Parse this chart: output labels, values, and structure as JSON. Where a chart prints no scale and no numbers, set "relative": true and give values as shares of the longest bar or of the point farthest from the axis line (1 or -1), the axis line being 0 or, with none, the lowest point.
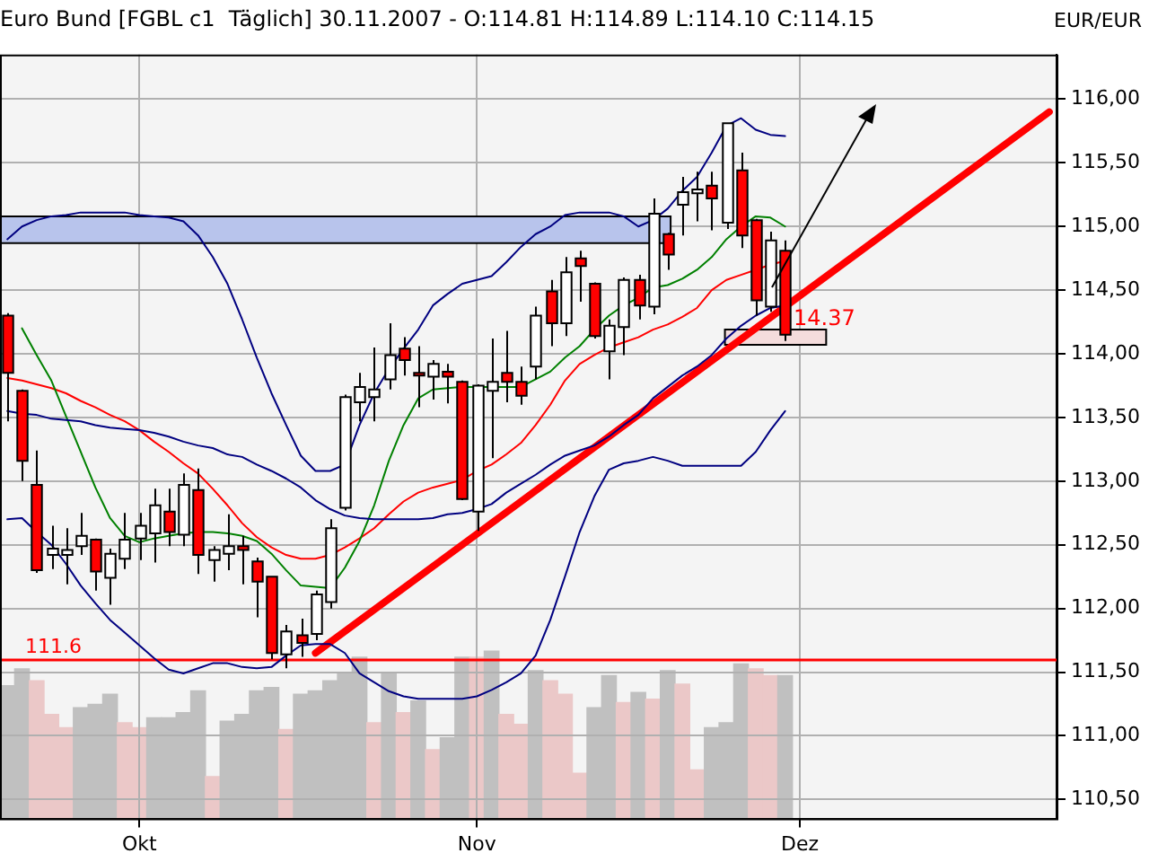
{
  "chart_data": [
    {
      "type": "candlestick",
      "title": "Euro Bund [FGBL c1  Täglich] 30.11.2007 - O:114.81 H:114.89 L:114.10 C:114.15",
      "ylabel": "EUR/EUR",
      "categories": [
        null,
        null,
        null,
        null,
        null,
        null,
        null,
        null,
        null,
        "Okt",
        null,
        null,
        null,
        null,
        null,
        null,
        null,
        null,
        null,
        null,
        null,
        null,
        null,
        null,
        null,
        null,
        null,
        null,
        null,
        null,
        null,
        null,
        "Nov",
        null,
        null,
        null,
        null,
        null,
        null,
        null,
        null,
        null,
        null,
        null,
        null,
        null,
        null,
        null,
        null,
        null,
        null,
        null,
        null,
        null,
        "Dez",
        null,
        null,
        null,
        null,
        null,
        null,
        null,
        null,
        null,
        null,
        null,
        null,
        null,
        null,
        null,
        null,
        null
      ],
      "ohlc": [
        [
          114.3,
          114.32,
          113.47,
          113.85
        ],
        [
          113.71,
          113.72,
          113.0,
          113.16
        ],
        [
          112.97,
          113.24,
          112.28,
          112.3
        ],
        [
          112.42,
          112.65,
          112.31,
          112.47
        ],
        [
          112.42,
          112.63,
          112.19,
          112.46
        ],
        [
          112.49,
          112.75,
          112.42,
          112.57
        ],
        [
          112.54,
          112.55,
          112.14,
          112.29
        ],
        [
          112.24,
          112.47,
          112.03,
          112.43
        ],
        [
          112.39,
          112.75,
          112.31,
          112.54
        ],
        [
          112.55,
          112.75,
          112.38,
          112.65
        ],
        [
          112.59,
          112.94,
          112.36,
          112.81
        ],
        [
          112.76,
          112.94,
          112.49,
          112.6
        ],
        [
          112.58,
          113.06,
          112.49,
          112.97
        ],
        [
          112.93,
          113.1,
          112.27,
          112.42
        ],
        [
          112.38,
          112.49,
          112.21,
          112.46
        ],
        [
          112.43,
          112.74,
          112.3,
          112.49
        ],
        [
          112.49,
          112.57,
          112.19,
          112.46
        ],
        [
          112.37,
          112.4,
          111.93,
          112.21
        ],
        [
          112.25,
          112.25,
          111.6,
          111.65
        ],
        [
          111.64,
          111.87,
          111.53,
          111.82
        ],
        [
          111.79,
          111.92,
          111.62,
          111.73
        ],
        [
          111.8,
          112.14,
          111.75,
          112.11
        ],
        [
          112.05,
          112.7,
          112.0,
          112.63
        ],
        [
          112.79,
          113.68,
          112.77,
          113.66
        ],
        [
          113.62,
          113.85,
          113.47,
          113.74
        ],
        [
          113.66,
          114.05,
          113.47,
          113.72
        ],
        [
          113.8,
          114.24,
          113.72,
          113.99
        ],
        [
          114.04,
          114.13,
          113.83,
          113.95
        ],
        [
          113.85,
          114.06,
          113.58,
          113.83
        ],
        [
          113.82,
          113.95,
          113.64,
          113.92
        ],
        [
          113.86,
          113.92,
          113.61,
          113.82
        ],
        [
          113.78,
          113.79,
          112.85,
          112.86
        ],
        [
          112.76,
          113.76,
          112.61,
          113.75
        ],
        [
          113.71,
          114.12,
          113.18,
          113.78
        ],
        [
          113.85,
          114.18,
          113.62,
          113.78
        ],
        [
          113.78,
          113.9,
          113.6,
          113.67
        ],
        [
          113.9,
          114.37,
          113.8,
          114.3
        ],
        [
          114.49,
          114.58,
          114.06,
          114.24
        ],
        [
          114.24,
          114.76,
          114.14,
          114.64
        ],
        [
          114.75,
          114.81,
          114.41,
          114.69
        ],
        [
          114.55,
          114.56,
          114.12,
          114.14
        ],
        [
          114.02,
          114.27,
          113.8,
          114.22
        ],
        [
          114.21,
          114.6,
          113.99,
          114.58
        ],
        [
          114.58,
          114.62,
          114.27,
          114.38
        ],
        [
          114.37,
          115.22,
          114.31,
          115.1
        ],
        [
          114.94,
          114.95,
          114.66,
          114.78
        ],
        [
          115.17,
          115.39,
          114.93,
          115.27
        ],
        [
          115.26,
          115.43,
          115.04,
          115.29
        ],
        [
          115.32,
          115.43,
          114.97,
          115.22
        ],
        [
          115.03,
          115.81,
          114.98,
          115.81
        ],
        [
          115.44,
          115.58,
          114.83,
          114.93
        ],
        [
          115.05,
          115.06,
          114.3,
          114.42
        ],
        [
          114.37,
          114.96,
          114.33,
          114.89
        ],
        [
          114.81,
          114.89,
          114.1,
          114.15
        ],
        null,
        null,
        null,
        null,
        null,
        null,
        null,
        null,
        null,
        null,
        null,
        null,
        null,
        null,
        null,
        null,
        null,
        null
      ],
      "colors": [
        "#ff0000",
        "#ff0000",
        "#ff0000",
        "#ffffff",
        "#ffffff",
        "#ffffff",
        "#ff0000",
        "#ffffff",
        "#ffffff",
        "#ffffff",
        "#ffffff",
        "#ff0000",
        "#ffffff",
        "#ff0000",
        "#ffffff",
        "#ffffff",
        "#ff0000",
        "#ff0000",
        "#ff0000",
        "#ffffff",
        "#ff0000",
        "#ffffff",
        "#ffffff",
        "#ffffff",
        "#ffffff",
        "#ffffff",
        "#ffffff",
        "#ff0000",
        "#ff0000",
        "#ffffff",
        "#ff0000",
        "#ff0000",
        "#ffffff",
        "#ffffff",
        "#ff0000",
        "#ff0000",
        "#ffffff",
        "#ff0000",
        "#ffffff",
        "#ff0000",
        "#ff0000",
        "#ffffff",
        "#ffffff",
        "#ff0000",
        "#ffffff",
        "#ff0000",
        "#ffffff",
        "#ffffff",
        "#ff0000",
        "#ffffff",
        "#ff0000",
        "#ff0000",
        "#ffffff",
        "#ff0000",
        null,
        null,
        null,
        null,
        null,
        null,
        null,
        null,
        null,
        null,
        null,
        null,
        null,
        null,
        null,
        null,
        null,
        null
      ],
      "series": [
        {
          "type": "line",
          "color": "#000080",
          "values": [
            114.9,
            115.0,
            115.05,
            115.08,
            115.09,
            115.11,
            115.11,
            115.11,
            115.11,
            115.09,
            115.08,
            115.07,
            115.04,
            114.93,
            114.76,
            114.55,
            114.27,
            113.97,
            113.69,
            113.44,
            113.2,
            113.08,
            113.08,
            113.13,
            113.44,
            113.69,
            113.88,
            114.04,
            114.19,
            114.38,
            114.47,
            114.55,
            114.58,
            114.61,
            114.72,
            114.84,
            114.94,
            115.0,
            115.09,
            115.11,
            115.11,
            115.11,
            115.08,
            115.0,
            115.05,
            115.14,
            115.28,
            115.39,
            115.58,
            115.79,
            115.85,
            115.76,
            115.72,
            115.71,
            null,
            null,
            null,
            null,
            null,
            null,
            null,
            null,
            null,
            null,
            null,
            null,
            null,
            null,
            null,
            null,
            null,
            null
          ]
        },
        {
          "type": "line",
          "color": "#000080",
          "values": [
            113.55,
            113.53,
            113.52,
            113.49,
            113.48,
            113.47,
            113.44,
            113.42,
            113.41,
            113.4,
            113.38,
            113.35,
            113.31,
            113.28,
            113.26,
            113.21,
            113.19,
            113.13,
            113.08,
            113.02,
            112.95,
            112.85,
            112.78,
            112.73,
            112.71,
            112.7,
            112.7,
            112.7,
            112.7,
            112.71,
            112.74,
            112.75,
            112.78,
            112.82,
            112.91,
            112.98,
            113.05,
            113.13,
            113.2,
            113.24,
            113.28,
            113.35,
            113.44,
            113.52,
            113.65,
            113.74,
            113.83,
            113.9,
            113.99,
            114.12,
            114.22,
            114.3,
            114.36,
            114.38,
            null,
            null,
            null,
            null,
            null,
            null,
            null,
            null,
            null,
            null,
            null,
            null,
            null,
            null,
            null,
            null,
            null,
            null
          ]
        },
        {
          "type": "line",
          "color": "#000080",
          "values": [
            112.7,
            112.71,
            112.6,
            112.5,
            112.35,
            112.18,
            112.04,
            111.91,
            111.81,
            111.71,
            111.61,
            111.52,
            111.49,
            111.53,
            111.57,
            111.57,
            111.54,
            111.53,
            111.54,
            111.63,
            111.71,
            111.72,
            111.72,
            111.65,
            111.49,
            111.42,
            111.35,
            111.31,
            111.29,
            111.29,
            111.29,
            111.29,
            111.31,
            111.36,
            111.42,
            111.49,
            111.63,
            111.91,
            112.25,
            112.6,
            112.88,
            113.09,
            113.14,
            113.16,
            113.19,
            113.16,
            113.12,
            113.12,
            113.12,
            113.12,
            113.12,
            113.23,
            113.4,
            113.55,
            null,
            null,
            null,
            null,
            null,
            null,
            null,
            null,
            null,
            null,
            null,
            null,
            null,
            null,
            null,
            null,
            null,
            null
          ]
        },
        {
          "type": "line",
          "color": "#008000",
          "values": [
            null,
            114.2,
            113.99,
            113.79,
            113.51,
            113.23,
            112.95,
            112.71,
            112.57,
            112.52,
            112.55,
            112.57,
            112.59,
            112.6,
            112.6,
            112.59,
            112.57,
            112.53,
            112.43,
            112.3,
            112.18,
            112.17,
            112.16,
            112.32,
            112.53,
            112.81,
            113.16,
            113.44,
            113.65,
            113.72,
            113.73,
            113.74,
            113.74,
            113.74,
            113.74,
            113.74,
            113.8,
            113.86,
            113.97,
            114.06,
            114.19,
            114.3,
            114.38,
            114.44,
            114.52,
            114.54,
            114.59,
            114.66,
            114.76,
            114.9,
            115.0,
            115.08,
            115.07,
            115.0,
            null,
            null,
            null,
            null,
            null,
            null,
            null,
            null,
            null,
            null,
            null,
            null,
            null,
            null,
            null,
            null,
            null,
            null
          ]
        },
        {
          "type": "line",
          "color": "#ff0000",
          "values": [
            113.81,
            113.79,
            113.76,
            113.73,
            113.69,
            113.63,
            113.58,
            113.52,
            113.47,
            113.4,
            113.31,
            113.23,
            113.14,
            113.06,
            112.94,
            112.81,
            112.67,
            112.56,
            112.48,
            112.42,
            112.39,
            112.39,
            112.42,
            112.48,
            112.55,
            112.63,
            112.74,
            112.84,
            112.91,
            112.95,
            112.98,
            113.01,
            113.08,
            113.13,
            113.21,
            113.3,
            113.44,
            113.6,
            113.79,
            113.92,
            113.99,
            114.05,
            114.09,
            114.13,
            114.19,
            114.23,
            114.29,
            114.36,
            114.5,
            114.58,
            114.62,
            114.66,
            114.7,
            114.73,
            null,
            null,
            null,
            null,
            null,
            null,
            null,
            null,
            null,
            null,
            null,
            null,
            null,
            null,
            null,
            null,
            null,
            null
          ]
        },
        {
          "type": "line",
          "color": "#ff0000",
          "values": [
            null,
            null,
            null,
            null,
            null,
            null,
            null,
            null,
            null,
            null,
            null,
            null,
            null,
            null,
            null,
            null,
            null,
            null,
            null,
            null,
            null,
            111.65,
            null,
            null,
            null,
            null,
            null,
            null,
            null,
            null,
            null,
            null,
            null,
            null,
            null,
            null,
            null,
            null,
            null,
            null,
            null,
            null,
            null,
            null,
            null,
            null,
            null,
            null,
            null,
            null,
            null,
            null,
            null,
            null,
            null,
            null,
            null,
            null,
            null,
            null,
            null,
            null,
            null,
            null,
            null,
            null,
            null,
            null,
            null,
            null,
            null,
            115.9
          ]
        }
      ],
      "ylim": [
        110.35,
        116.35
      ],
      "yticks": [
        {
          "value": 110.5,
          "label": "110,50"
        },
        {
          "value": 111,
          "label": "111,00"
        },
        {
          "value": 111.5,
          "label": "111,50"
        },
        {
          "value": 112,
          "label": "112,00"
        },
        {
          "value": 112.5,
          "label": "112,50"
        },
        {
          "value": 113,
          "label": "113,00"
        },
        {
          "value": 113.5,
          "label": "113,50"
        },
        {
          "value": 114,
          "label": "114,00"
        },
        {
          "value": 114.5,
          "label": "114,50"
        },
        {
          "value": 115,
          "label": "115,00"
        },
        {
          "value": 115.5,
          "label": "115,50"
        },
        {
          "value": 116,
          "label": "116,00"
        }
      ],
      "grid": true,
      "marker": "none",
      "ref_lines": [
        {
          "axis": "y",
          "value": 111.6,
          "label": "111.6",
          "color": "#ff0000"
        }
      ],
      "bands": [
        {
          "axis": "y",
          "from": 114.87,
          "to": 115.08,
          "color": "#b8c4ec"
        },
        {
          "axis": "y",
          "from": 114.07,
          "to": 114.19,
          "color": "#f4dcdc"
        }
      ],
      "annotations": [
        "14.37"
      ]
    },
    {
      "type": "bar",
      "relative": true,
      "tick_labels": false,
      "categories": [
        null,
        null,
        null,
        null,
        null,
        null,
        null,
        null,
        null,
        null,
        null,
        null,
        null,
        null,
        null,
        null,
        null,
        null,
        null,
        null,
        null,
        null,
        null,
        null,
        null,
        null,
        null,
        null,
        null,
        null,
        null,
        null,
        null,
        null,
        null,
        null,
        null,
        null,
        null,
        null,
        null,
        null,
        null,
        null,
        null,
        null,
        null,
        null,
        null,
        null,
        null,
        null,
        null,
        null,
        null,
        null,
        null,
        null,
        null,
        null,
        null,
        null,
        null,
        null,
        null,
        null,
        null,
        null,
        null,
        null,
        null,
        null
      ],
      "colors": [
        "#c0c0c0",
        "#c0c0c0",
        "#ebc8c8",
        "#ebc8c8",
        "#ebc8c8",
        "#c0c0c0",
        "#c0c0c0",
        "#c0c0c0",
        "#ebc8c8",
        "#ebc8c8",
        "#c0c0c0",
        "#c0c0c0",
        "#c0c0c0",
        "#c0c0c0",
        "#ebc8c8",
        "#c0c0c0",
        "#c0c0c0",
        "#c0c0c0",
        "#c0c0c0",
        "#ebc8c8",
        "#c0c0c0",
        "#c0c0c0",
        "#c0c0c0",
        "#c0c0c0",
        "#c0c0c0",
        "#ebc8c8",
        "#c0c0c0",
        "#ebc8c8",
        "#c0c0c0",
        "#ebc8c8",
        "#c0c0c0",
        "#c0c0c0",
        "#ebc8c8",
        "#c0c0c0",
        "#ebc8c8",
        "#ebc8c8",
        "#c0c0c0",
        "#ebc8c8",
        "#ebc8c8",
        "#ebc8c8",
        "#c0c0c0",
        "#c0c0c0",
        "#ebc8c8",
        "#c0c0c0",
        "#ebc8c8",
        "#c0c0c0",
        "#ebc8c8",
        "#ebc8c8",
        "#c0c0c0",
        "#c0c0c0",
        "#c0c0c0",
        "#ebc8c8",
        "#ebc8c8",
        "#c0c0c0",
        null,
        null,
        null,
        null,
        null,
        null,
        null,
        null,
        null,
        null,
        null,
        null,
        null,
        null,
        null,
        null,
        null,
        null
      ],
      "values": [
        0.79,
        0.89,
        0.82,
        0.62,
        0.54,
        0.66,
        0.68,
        0.74,
        0.57,
        0.54,
        0.6,
        0.6,
        0.63,
        0.76,
        0.25,
        0.58,
        0.62,
        0.76,
        0.78,
        0.53,
        0.74,
        0.76,
        0.82,
        0.87,
        0.96,
        0.57,
        0.86,
        0.63,
        0.7,
        0.41,
        0.48,
        0.96,
        0.96,
        1,
        0.62,
        0.56,
        0.88,
        0.82,
        0.74,
        0.27,
        0.66,
        0.85,
        0.69,
        0.75,
        0.71,
        0.88,
        0.8,
        0.29,
        0.54,
        0.57,
        0.92,
        0.89,
        0.85,
        0.85,
        null,
        null,
        null,
        null,
        null,
        null,
        null,
        null,
        null,
        null,
        null,
        null,
        null,
        null,
        null,
        null,
        null,
        null
      ]
    }
  ]
}
